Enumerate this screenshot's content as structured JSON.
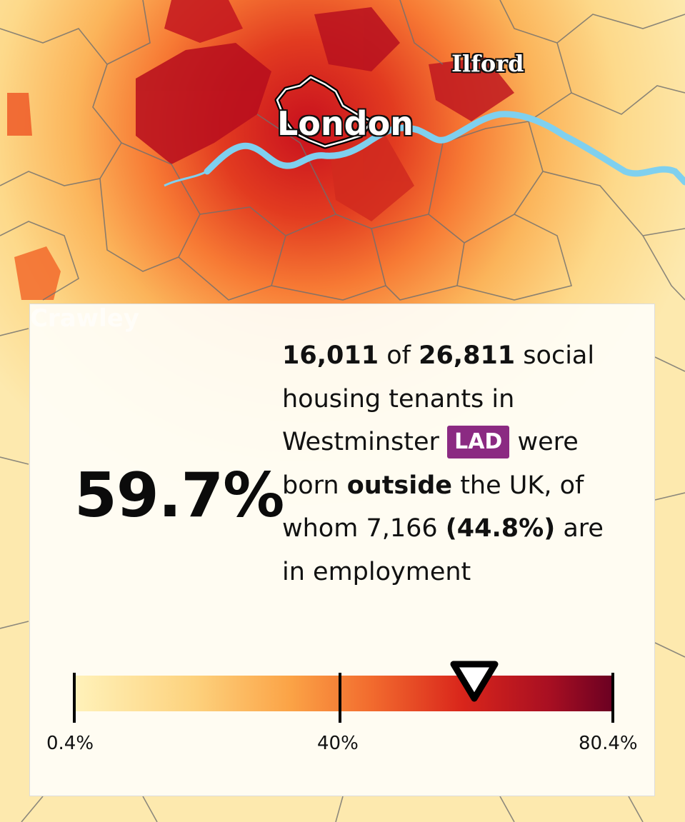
{
  "map": {
    "labels": {
      "ilford": "Ilford",
      "london": "London",
      "crawley": "Crawley"
    },
    "colors": {
      "river": "#7fd0ef",
      "borders": "#6f6f6f"
    }
  },
  "panel": {
    "value": "59.7%",
    "count": "16,011",
    "of_word": "of",
    "total": "26,811",
    "line1_rest": "social housing tenants in",
    "area": "Westminster",
    "area_type": "LAD",
    "born_text": "were born",
    "outside": "outside",
    "uk_text": "the UK, of whom 7,166",
    "employed_pct": "(44.8%)",
    "employed_text": "are in employment",
    "badge_color": "#8b2a82"
  },
  "legend": {
    "min_label": "0.4%",
    "mid_label": "40%",
    "max_label": "80.4%",
    "min": 0.4,
    "max": 80.4,
    "marker_value": 59.7,
    "colors": [
      "#fff2ba",
      "#fdd27e",
      "#fba346",
      "#f26b2e",
      "#d9251b",
      "#a80f22",
      "#690022"
    ]
  }
}
